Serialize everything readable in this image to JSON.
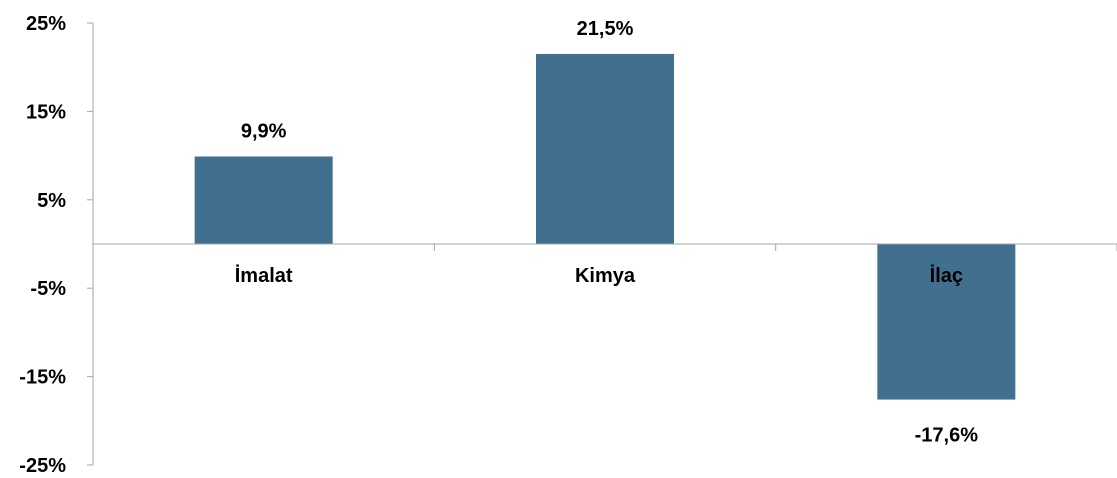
{
  "chart_data": {
    "type": "bar",
    "categories": [
      "İmalat",
      "Kimya",
      "İlaç"
    ],
    "values": [
      9.9,
      21.5,
      -17.6
    ],
    "data_labels": [
      "9,9%",
      "21,5%",
      "-17,6%"
    ],
    "title": "",
    "xlabel": "",
    "ylabel": "",
    "ylim": [
      -25,
      25
    ],
    "y_ticks": [
      25,
      15,
      5,
      -5,
      -15,
      -25
    ],
    "y_tick_labels": [
      "25%",
      "15%",
      "5%",
      "-5%",
      "-15%",
      "-25%"
    ],
    "grid": false,
    "legend": "none",
    "bar_color": "#41708f",
    "axis_color": "#a6a6a6"
  }
}
